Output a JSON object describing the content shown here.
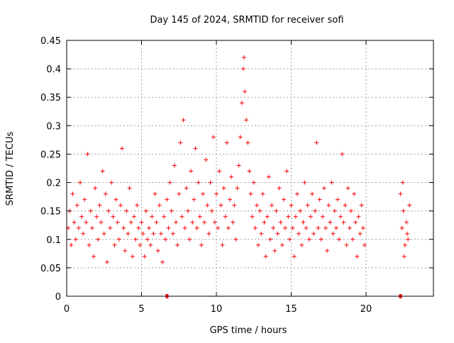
{
  "chart_data": {
    "type": "scatter",
    "title": "Day 145 of 2024, SRMTID for receiver sofi",
    "xlabel": "GPS time / hours",
    "ylabel": "SRMTID / TECUs",
    "xlim": [
      0,
      24.5
    ],
    "ylim": [
      0,
      0.45
    ],
    "xticks": [
      0,
      5,
      10,
      15,
      20
    ],
    "xtick_labels": [
      "0",
      "5",
      "10",
      "15",
      "20"
    ],
    "yticks": [
      0,
      0.05,
      0.1,
      0.15,
      0.2,
      0.25,
      0.3,
      0.35,
      0.4,
      0.45
    ],
    "ytick_labels": [
      "0",
      "0.05",
      "0.1",
      "0.15",
      "0.2",
      "0.25",
      "0.3",
      "0.35",
      "0.4",
      "0.45"
    ],
    "grid": true,
    "marker": "+",
    "color": "#ff0000",
    "series": [
      {
        "points": [
          [
            0.1,
            0.12
          ],
          [
            0.2,
            0.15
          ],
          [
            0.3,
            0.09
          ],
          [
            0.4,
            0.18
          ],
          [
            0.5,
            0.13
          ],
          [
            0.6,
            0.1
          ],
          [
            0.7,
            0.16
          ],
          [
            0.8,
            0.12
          ],
          [
            0.9,
            0.2
          ],
          [
            1.0,
            0.14
          ],
          [
            1.1,
            0.11
          ],
          [
            1.2,
            0.17
          ],
          [
            1.3,
            0.13
          ],
          [
            1.4,
            0.25
          ],
          [
            1.5,
            0.09
          ],
          [
            1.6,
            0.15
          ],
          [
            1.7,
            0.12
          ],
          [
            1.8,
            0.07
          ],
          [
            1.9,
            0.19
          ],
          [
            2.0,
            0.14
          ],
          [
            2.1,
            0.1
          ],
          [
            2.2,
            0.16
          ],
          [
            2.3,
            0.13
          ],
          [
            2.4,
            0.22
          ],
          [
            2.5,
            0.11
          ],
          [
            2.6,
            0.18
          ],
          [
            2.7,
            0.06
          ],
          [
            2.8,
            0.15
          ],
          [
            2.9,
            0.12
          ],
          [
            3.0,
            0.2
          ],
          [
            3.1,
            0.14
          ],
          [
            3.2,
            0.09
          ],
          [
            3.3,
            0.17
          ],
          [
            3.4,
            0.13
          ],
          [
            3.5,
            0.1
          ],
          [
            3.6,
            0.16
          ],
          [
            3.7,
            0.26
          ],
          [
            3.8,
            0.12
          ],
          [
            3.9,
            0.08
          ],
          [
            4.0,
            0.15
          ],
          [
            4.1,
            0.11
          ],
          [
            4.2,
            0.19
          ],
          [
            4.3,
            0.13
          ],
          [
            4.4,
            0.07
          ],
          [
            4.5,
            0.14
          ],
          [
            4.6,
            0.1
          ],
          [
            4.7,
            0.16
          ],
          [
            4.8,
            0.12
          ],
          [
            4.9,
            0.09
          ],
          [
            5.0,
            0.13
          ],
          [
            5.1,
            0.11
          ],
          [
            5.2,
            0.07
          ],
          [
            5.3,
            0.15
          ],
          [
            5.4,
            0.1
          ],
          [
            5.5,
            0.12
          ],
          [
            5.6,
            0.09
          ],
          [
            5.7,
            0.14
          ],
          [
            5.8,
            0.11
          ],
          [
            5.9,
            0.18
          ],
          [
            6.0,
            0.13
          ],
          [
            6.1,
            0.08
          ],
          [
            6.2,
            0.16
          ],
          [
            6.3,
            0.11
          ],
          [
            6.4,
            0.06
          ],
          [
            6.5,
            0.14
          ],
          [
            6.6,
            0.1
          ],
          [
            6.7,
            0.17
          ],
          [
            6.8,
            0.12
          ],
          [
            6.9,
            0.2
          ],
          [
            7.0,
            0.15
          ],
          [
            7.1,
            0.11
          ],
          [
            7.2,
            0.23
          ],
          [
            7.3,
            0.13
          ],
          [
            7.4,
            0.09
          ],
          [
            7.5,
            0.18
          ],
          [
            7.6,
            0.27
          ],
          [
            7.7,
            0.14
          ],
          [
            7.8,
            0.31
          ],
          [
            7.9,
            0.12
          ],
          [
            8.0,
            0.19
          ],
          [
            8.1,
            0.15
          ],
          [
            8.2,
            0.1
          ],
          [
            8.3,
            0.22
          ],
          [
            8.4,
            0.13
          ],
          [
            8.5,
            0.17
          ],
          [
            8.6,
            0.26
          ],
          [
            8.7,
            0.12
          ],
          [
            8.8,
            0.2
          ],
          [
            8.9,
            0.14
          ],
          [
            9.0,
            0.09
          ],
          [
            9.1,
            0.18
          ],
          [
            9.2,
            0.13
          ],
          [
            9.3,
            0.24
          ],
          [
            9.4,
            0.16
          ],
          [
            9.5,
            0.11
          ],
          [
            9.6,
            0.2
          ],
          [
            9.7,
            0.15
          ],
          [
            9.8,
            0.28
          ],
          [
            9.9,
            0.13
          ],
          [
            10.0,
            0.18
          ],
          [
            10.1,
            0.12
          ],
          [
            10.2,
            0.22
          ],
          [
            10.3,
            0.16
          ],
          [
            10.4,
            0.09
          ],
          [
            10.5,
            0.19
          ],
          [
            10.6,
            0.14
          ],
          [
            10.7,
            0.27
          ],
          [
            10.8,
            0.12
          ],
          [
            10.9,
            0.17
          ],
          [
            11.0,
            0.21
          ],
          [
            11.1,
            0.13
          ],
          [
            11.2,
            0.16
          ],
          [
            11.3,
            0.1
          ],
          [
            11.4,
            0.19
          ],
          [
            11.5,
            0.23
          ],
          [
            11.6,
            0.28
          ],
          [
            11.7,
            0.34
          ],
          [
            11.8,
            0.4
          ],
          [
            11.85,
            0.42
          ],
          [
            11.9,
            0.36
          ],
          [
            12.0,
            0.31
          ],
          [
            12.1,
            0.27
          ],
          [
            12.2,
            0.22
          ],
          [
            12.3,
            0.18
          ],
          [
            12.4,
            0.14
          ],
          [
            12.5,
            0.2
          ],
          [
            12.6,
            0.12
          ],
          [
            12.7,
            0.16
          ],
          [
            12.8,
            0.09
          ],
          [
            12.9,
            0.15
          ],
          [
            13.0,
            0.11
          ],
          [
            13.1,
            0.18
          ],
          [
            13.2,
            0.13
          ],
          [
            13.3,
            0.07
          ],
          [
            13.4,
            0.14
          ],
          [
            13.5,
            0.21
          ],
          [
            13.6,
            0.1
          ],
          [
            13.7,
            0.16
          ],
          [
            13.8,
            0.12
          ],
          [
            13.9,
            0.08
          ],
          [
            14.0,
            0.15
          ],
          [
            14.1,
            0.11
          ],
          [
            14.2,
            0.19
          ],
          [
            14.3,
            0.13
          ],
          [
            14.4,
            0.09
          ],
          [
            14.5,
            0.17
          ],
          [
            14.6,
            0.12
          ],
          [
            14.7,
            0.22
          ],
          [
            14.8,
            0.14
          ],
          [
            14.9,
            0.1
          ],
          [
            15.0,
            0.16
          ],
          [
            15.1,
            0.12
          ],
          [
            15.2,
            0.07
          ],
          [
            15.3,
            0.14
          ],
          [
            15.4,
            0.18
          ],
          [
            15.5,
            0.11
          ],
          [
            15.6,
            0.15
          ],
          [
            15.7,
            0.09
          ],
          [
            15.8,
            0.13
          ],
          [
            15.9,
            0.2
          ],
          [
            16.0,
            0.12
          ],
          [
            16.1,
            0.16
          ],
          [
            16.2,
            0.1
          ],
          [
            16.3,
            0.14
          ],
          [
            16.4,
            0.18
          ],
          [
            16.5,
            0.11
          ],
          [
            16.6,
            0.15
          ],
          [
            16.7,
            0.27
          ],
          [
            16.8,
            0.12
          ],
          [
            16.9,
            0.17
          ],
          [
            17.0,
            0.1
          ],
          [
            17.1,
            0.14
          ],
          [
            17.2,
            0.19
          ],
          [
            17.3,
            0.12
          ],
          [
            17.4,
            0.08
          ],
          [
            17.5,
            0.16
          ],
          [
            17.6,
            0.13
          ],
          [
            17.7,
            0.2
          ],
          [
            17.8,
            0.11
          ],
          [
            17.9,
            0.15
          ],
          [
            18.0,
            0.12
          ],
          [
            18.1,
            0.17
          ],
          [
            18.2,
            0.1
          ],
          [
            18.3,
            0.14
          ],
          [
            18.4,
            0.25
          ],
          [
            18.5,
            0.13
          ],
          [
            18.6,
            0.16
          ],
          [
            18.7,
            0.09
          ],
          [
            18.8,
            0.19
          ],
          [
            18.9,
            0.12
          ],
          [
            19.0,
            0.15
          ],
          [
            19.1,
            0.1
          ],
          [
            19.2,
            0.18
          ],
          [
            19.3,
            0.13
          ],
          [
            19.4,
            0.07
          ],
          [
            19.5,
            0.14
          ],
          [
            19.6,
            0.11
          ],
          [
            19.7,
            0.16
          ],
          [
            19.8,
            0.12
          ],
          [
            19.9,
            0.09
          ],
          [
            22.3,
            0.18
          ],
          [
            22.4,
            0.12
          ],
          [
            22.5,
            0.15
          ],
          [
            22.6,
            0.09
          ],
          [
            22.7,
            0.13
          ],
          [
            22.8,
            0.1
          ],
          [
            22.9,
            0.16
          ],
          [
            22.45,
            0.2
          ],
          [
            22.55,
            0.07
          ],
          [
            22.75,
            0.11
          ]
        ]
      },
      {
        "points": [
          [
            6.7,
            0.0
          ],
          [
            22.3,
            0.0
          ]
        ]
      }
    ]
  }
}
